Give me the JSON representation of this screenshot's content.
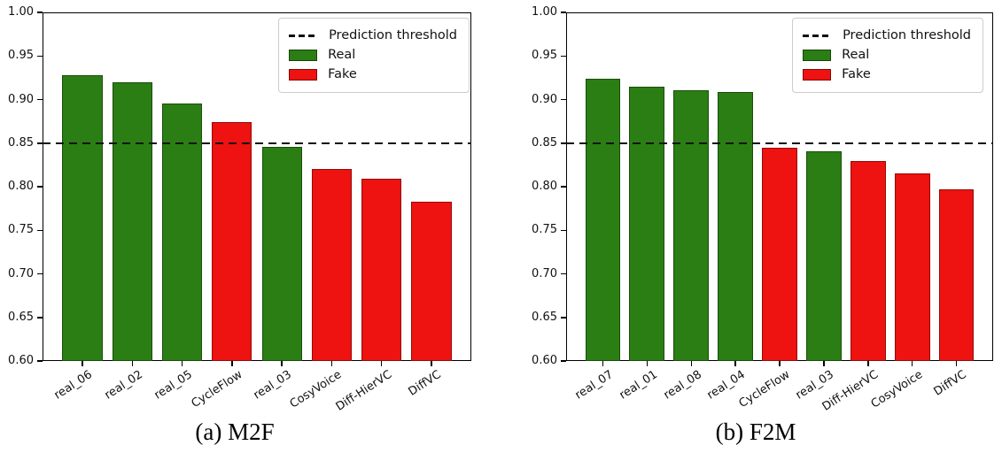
{
  "colors": {
    "real": "#2a7e13",
    "fake": "#ee1210",
    "threshold": "#111111"
  },
  "chart_data": [
    {
      "type": "bar",
      "caption": "(a) M2F",
      "categories": [
        "real_06",
        "real_02",
        "real_05",
        "CycleFlow",
        "real_03",
        "CosyVoice",
        "Diff-HierVC",
        "DiffVC"
      ],
      "values": [
        0.928,
        0.92,
        0.895,
        0.874,
        0.846,
        0.82,
        0.809,
        0.783
      ],
      "classes": [
        "real",
        "real",
        "real",
        "fake",
        "real",
        "fake",
        "fake",
        "fake"
      ],
      "threshold": 0.85,
      "ylim": [
        0.6,
        1.0
      ],
      "ytick_labels": [
        "1.00",
        "0.95",
        "0.90",
        "0.85",
        "0.80",
        "0.75",
        "0.70",
        "0.65",
        "0.60"
      ],
      "grid": false,
      "legend_position": "upper right",
      "legend": [
        {
          "swatch": "dashed-line",
          "label": "Prediction threshold"
        },
        {
          "swatch": "patch",
          "class": "real",
          "label": "Real"
        },
        {
          "swatch": "patch",
          "class": "fake",
          "label": "Fake"
        }
      ]
    },
    {
      "type": "bar",
      "caption": "(b) F2M",
      "categories": [
        "real_07",
        "real_01",
        "real_08",
        "real_04",
        "CycleFlow",
        "real_03",
        "Diff-HierVC",
        "CosyVoice",
        "DiffVC"
      ],
      "values": [
        0.924,
        0.915,
        0.911,
        0.909,
        0.845,
        0.841,
        0.829,
        0.815,
        0.797
      ],
      "classes": [
        "real",
        "real",
        "real",
        "real",
        "fake",
        "real",
        "fake",
        "fake",
        "fake"
      ],
      "threshold": 0.85,
      "ylim": [
        0.6,
        1.0
      ],
      "ytick_labels": [
        "1.00",
        "0.95",
        "0.90",
        "0.85",
        "0.80",
        "0.75",
        "0.70",
        "0.65",
        "0.60"
      ],
      "grid": false,
      "legend_position": "upper right",
      "legend": [
        {
          "swatch": "dashed-line",
          "label": "Prediction threshold"
        },
        {
          "swatch": "patch",
          "class": "real",
          "label": "Real"
        },
        {
          "swatch": "patch",
          "class": "fake",
          "label": "Fake"
        }
      ]
    }
  ]
}
